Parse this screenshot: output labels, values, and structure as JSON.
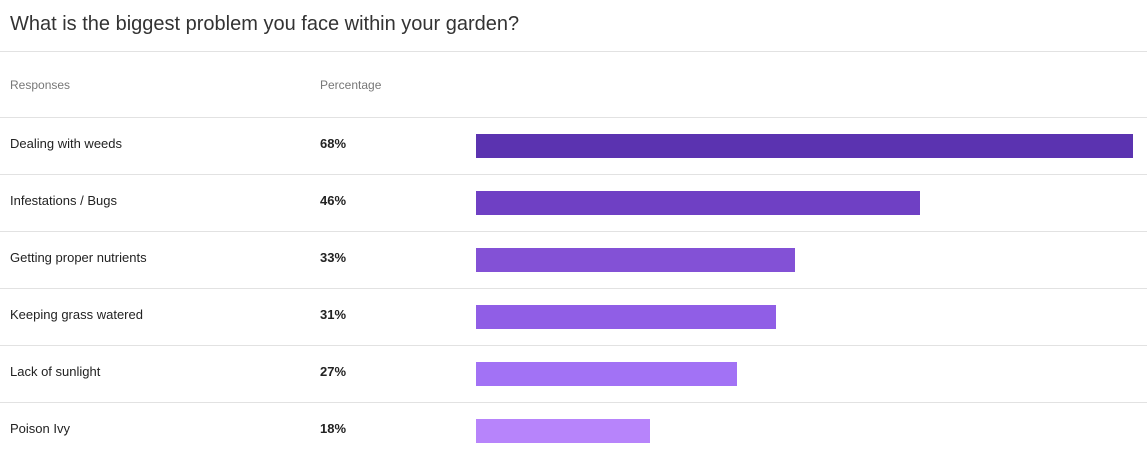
{
  "title": "What is the biggest problem you face within your garden?",
  "headers": {
    "responses": "Responses",
    "percentage": "Percentage"
  },
  "chart_data": {
    "type": "bar",
    "orientation": "horizontal",
    "title": "What is the biggest problem you face within your garden?",
    "categories": [
      "Dealing with weeds",
      "Infestations / Bugs",
      "Getting proper nutrients",
      "Keeping grass watered",
      "Lack of sunlight",
      "Poison Ivy"
    ],
    "values": [
      68,
      46,
      33,
      31,
      27,
      18
    ],
    "labels": [
      "68%",
      "46%",
      "33%",
      "31%",
      "27%",
      "18%"
    ],
    "colors": [
      "#5b33b0",
      "#6f40c4",
      "#8351d6",
      "#905ee6",
      "#a272f5",
      "#b784fb"
    ],
    "grid": false,
    "legend": "none"
  }
}
